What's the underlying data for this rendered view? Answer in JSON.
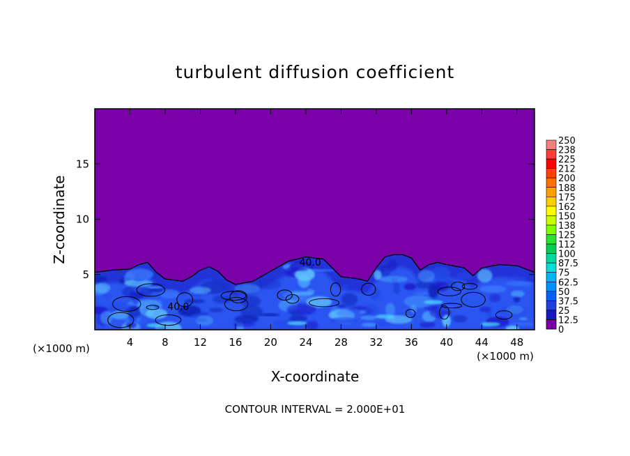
{
  "chart_data": {
    "type": "heatmap",
    "title": "turbulent diffusion coefficient",
    "xlabel": "X-coordinate",
    "ylabel": "Z-coordinate",
    "x_unit": "(×1000 m)",
    "z_unit": "(×1000 m)",
    "xlim": [
      0,
      50
    ],
    "ylim": [
      0,
      20
    ],
    "x_ticks": [
      4,
      8,
      12,
      16,
      20,
      24,
      28,
      32,
      36,
      40,
      44,
      48
    ],
    "y_ticks": [
      5,
      10,
      15
    ],
    "grid": false,
    "footer": "CONTOUR INTERVAL = 2.000E+01",
    "contour_labels": [
      {
        "text": "40.0",
        "x": 24.5,
        "z": 5.8
      },
      {
        "text": "40.0",
        "x": 9.5,
        "z": 1.8
      }
    ],
    "colorbar": {
      "labels": [
        "250",
        "238",
        "225",
        "212",
        "200",
        "188",
        "175",
        "162",
        "150",
        "138",
        "125",
        "112",
        "100",
        "87.5",
        "75",
        "62.5",
        "50",
        "37.5",
        "25",
        "12.5",
        "0"
      ],
      "colors": [
        "#f08080",
        "#ff3a3a",
        "#ff0000",
        "#ff4000",
        "#ff7000",
        "#ffa000",
        "#ffd000",
        "#ffff00",
        "#c8ff00",
        "#80ff00",
        "#30e030",
        "#00d050",
        "#00d8a0",
        "#00e0d8",
        "#00b8f0",
        "#0090ff",
        "#0060ff",
        "#2040e0",
        "#1818c0",
        "#2000a0",
        "#7a00a8"
      ]
    },
    "field": {
      "background": "#7a00a8",
      "boundary_layer_top": [
        [
          0,
          5.2
        ],
        [
          2,
          5.4
        ],
        [
          4,
          5.5
        ],
        [
          5,
          5.9
        ],
        [
          6,
          6.1
        ],
        [
          7,
          5.2
        ],
        [
          8,
          4.6
        ],
        [
          10,
          4.4
        ],
        [
          11,
          4.8
        ],
        [
          12,
          5.4
        ],
        [
          13,
          5.7
        ],
        [
          14,
          5.3
        ],
        [
          15,
          4.5
        ],
        [
          16,
          4.1
        ],
        [
          18,
          4.4
        ],
        [
          20,
          5.3
        ],
        [
          22,
          6.2
        ],
        [
          24,
          6.6
        ],
        [
          26,
          6.4
        ],
        [
          27,
          5.6
        ],
        [
          28,
          4.8
        ],
        [
          30,
          4.6
        ],
        [
          31,
          4.4
        ],
        [
          32,
          5.6
        ],
        [
          33,
          6.6
        ],
        [
          34,
          6.8
        ],
        [
          35,
          6.8
        ],
        [
          36,
          6.5
        ],
        [
          37,
          5.4
        ],
        [
          38,
          5.9
        ],
        [
          39,
          6.1
        ],
        [
          40,
          5.9
        ],
        [
          42,
          5.6
        ],
        [
          43,
          4.9
        ],
        [
          44,
          5.6
        ],
        [
          46,
          5.9
        ],
        [
          48,
          5.8
        ],
        [
          50,
          5.2
        ]
      ]
    }
  }
}
